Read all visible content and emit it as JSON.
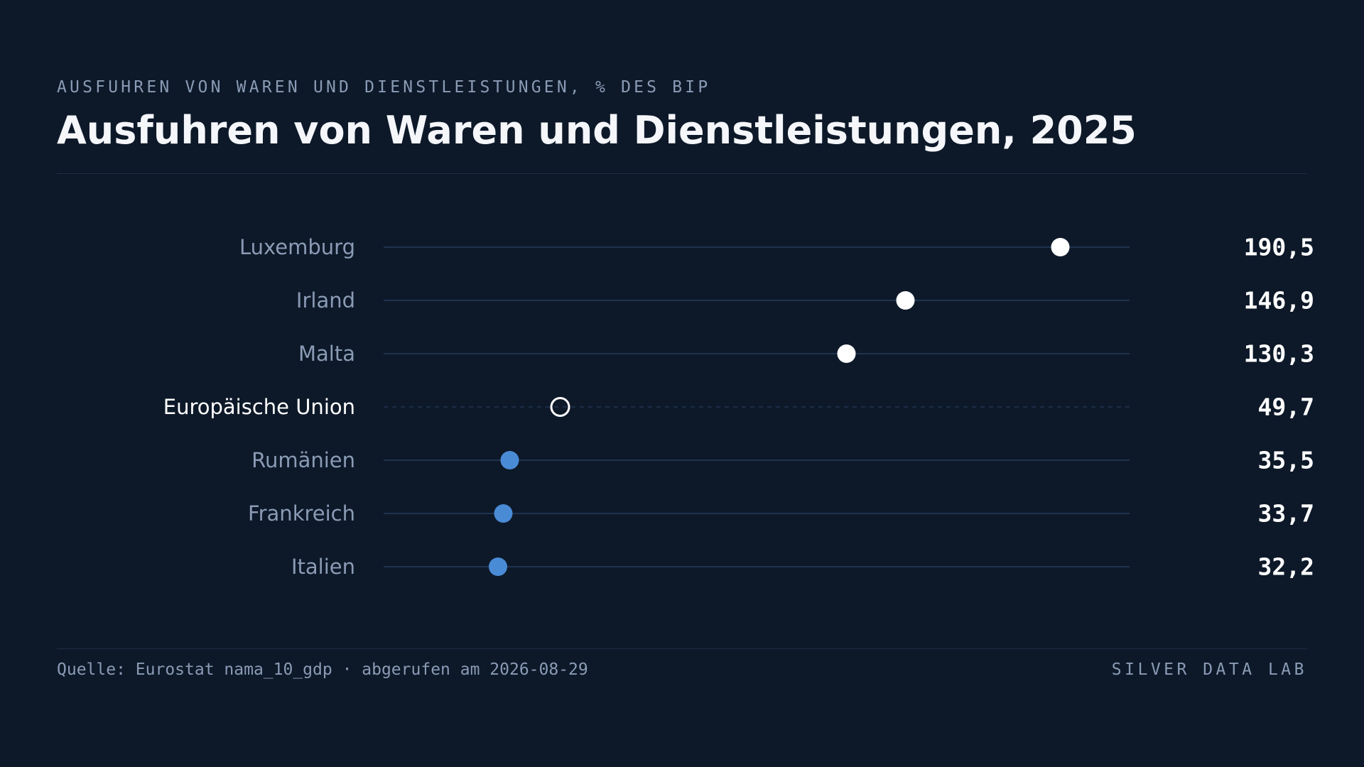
{
  "header": {
    "kicker": "AUSFUHREN VON WAREN UND DIENSTLEISTUNGEN, % DES BIP",
    "title": "Ausfuhren von Waren und Dienstleistungen, 2025"
  },
  "footer": {
    "source": "Quelle: Eurostat nama_10_gdp · abgerufen am 2026-08-29",
    "brand": "SILVER DATA LAB"
  },
  "colors": {
    "background": "#0d1929",
    "track": "#1f3350",
    "dot_top": "#ffffff",
    "dot_low": "#4a8bd6",
    "reference_ring": "#ffffff",
    "muted_text": "#8b9bb5"
  },
  "chart_data": {
    "type": "dot",
    "title": "Ausfuhren von Waren und Dienstleistungen, 2025",
    "unit": "% des BIP",
    "xlim": [
      0,
      210
    ],
    "grid": false,
    "categories": [
      "Luxemburg",
      "Irland",
      "Malta",
      "Europäische Union",
      "Rumänien",
      "Frankreich",
      "Italien"
    ],
    "values": [
      190.5,
      146.9,
      130.3,
      49.7,
      35.5,
      33.7,
      32.2
    ],
    "value_labels": [
      "190,5",
      "146,9",
      "130,3",
      "49,7",
      "35,5",
      "33,7",
      "32,2"
    ],
    "reference_category": "Europäische Union",
    "dot_styles": [
      "top",
      "top",
      "top",
      "reference",
      "low",
      "low",
      "low"
    ]
  }
}
